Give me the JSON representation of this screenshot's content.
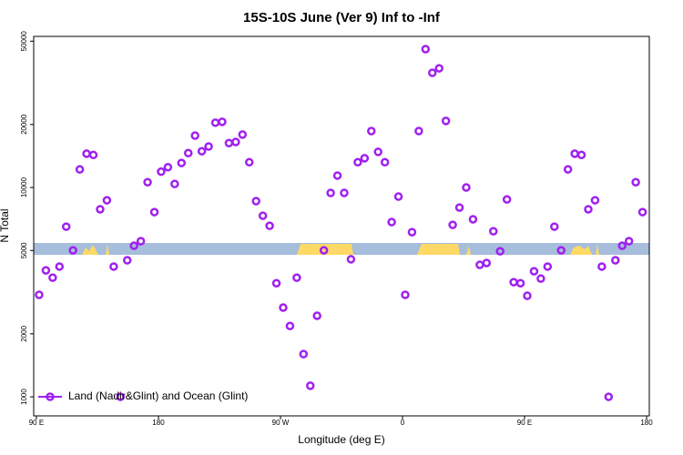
{
  "chart_data": {
    "type": "scatter",
    "title": "15S-10S June (Ver 9)   Inf to -Inf",
    "x_label": "Longitude (deg E)",
    "y_label": "N Total",
    "log_y": true,
    "legend": "bottom-left",
    "xlim": [
      88,
      542
    ],
    "ylim": [
      811,
      52700
    ],
    "xticks": [
      {
        "value": 90,
        "label": "90 E"
      },
      180,
      {
        "value": 270,
        "label": "90 W"
      },
      {
        "value": 360,
        "label": "0"
      },
      {
        "value": 450,
        "label": "90 E"
      },
      {
        "value": 540,
        "label": "180"
      }
    ],
    "yticks": [
      1000,
      2000,
      5000,
      10000,
      20000,
      50000
    ],
    "series": [
      {
        "name": "Land (Nadir&Glint) and Ocean (Glint)",
        "color": "#a020f0",
        "x": [
          92,
          97,
          102,
          107,
          112,
          117,
          122,
          127,
          132,
          137,
          142,
          147,
          152,
          157,
          162,
          167,
          172,
          177,
          182,
          187,
          192,
          197,
          202,
          207,
          212,
          217,
          222,
          227,
          232,
          237,
          242,
          247,
          252,
          257,
          262,
          267,
          272,
          277,
          282,
          287,
          292,
          297,
          302,
          307,
          312,
          317,
          322,
          327,
          332,
          337,
          342,
          347,
          352,
          357,
          362,
          367,
          372,
          377,
          382,
          387,
          392,
          397,
          402,
          407,
          412,
          417,
          422,
          427,
          432,
          437,
          442,
          447,
          452,
          457,
          462,
          467,
          472,
          477,
          482,
          487,
          492,
          497,
          502,
          507,
          512,
          517,
          522,
          527,
          532,
          537
        ],
        "values": [
          3070,
          4020,
          3710,
          4190,
          6500,
          5010,
          12200,
          14500,
          14300,
          7870,
          8690,
          4190,
          1000,
          4490,
          5270,
          5540,
          10600,
          7630,
          11900,
          12500,
          10400,
          13100,
          14600,
          17700,
          14900,
          15700,
          20400,
          20600,
          16300,
          16500,
          17900,
          13200,
          8610,
          7330,
          6560,
          3490,
          2670,
          2180,
          3710,
          1600,
          1130,
          2440,
          5010,
          9420,
          11400,
          9420,
          4540,
          13200,
          13800,
          18600,
          14800,
          13200,
          6840,
          9050,
          3070,
          6120,
          18600,
          45800,
          35300,
          37100,
          20800,
          6630,
          8020,
          10000,
          7050,
          4270,
          4360,
          6180,
          4960,
          8770,
          3530,
          3490,
          3040,
          3980,
          3670,
          4190,
          6500,
          5010,
          12200,
          14500,
          14300,
          7870,
          8690,
          4190,
          1000,
          4490,
          5270,
          5540,
          10600,
          7630
        ]
      }
    ]
  }
}
